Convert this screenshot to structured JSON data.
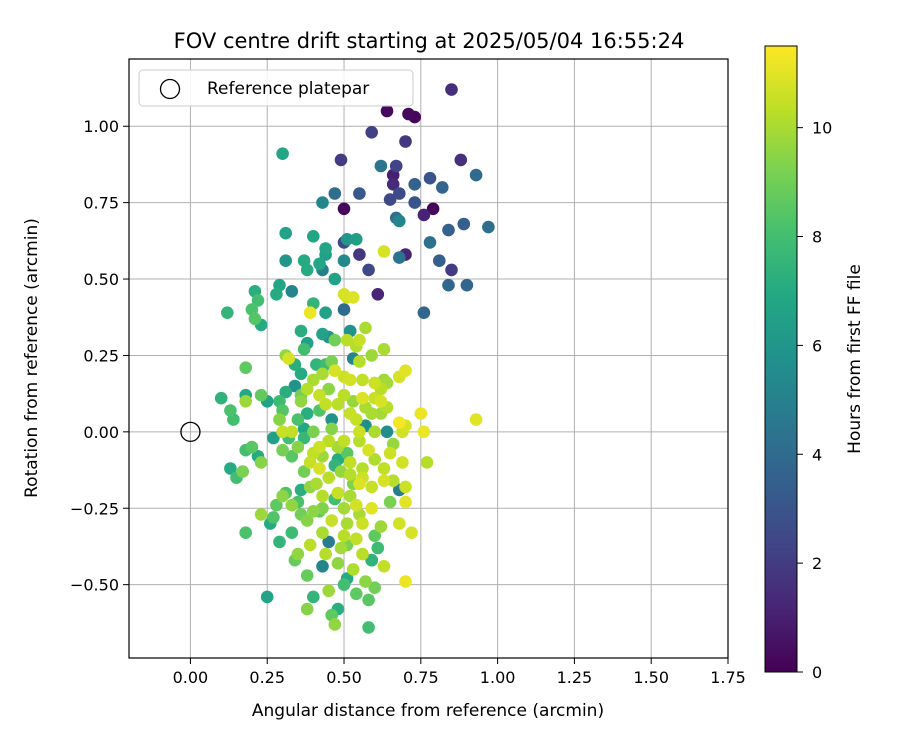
{
  "chart_data": {
    "type": "scatter",
    "title": "FOV centre drift starting at 2025/05/04 16:55:24",
    "xlabel": "Angular distance from reference (arcmin)",
    "ylabel": "Rotation from reference (arcmin)",
    "xlim": [
      -0.2,
      1.75
    ],
    "ylim": [
      -0.74,
      1.22
    ],
    "xticks": [
      "0.00",
      "0.25",
      "0.50",
      "0.75",
      "1.00",
      "1.25",
      "1.50",
      "1.75"
    ],
    "xtick_values": [
      0.0,
      0.25,
      0.5,
      0.75,
      1.0,
      1.25,
      1.5,
      1.75
    ],
    "yticks": [
      "−0.50",
      "−0.25",
      "0.00",
      "0.25",
      "0.50",
      "0.75",
      "1.00"
    ],
    "ytick_values": [
      -0.5,
      -0.25,
      0.0,
      0.25,
      0.5,
      0.75,
      1.0
    ],
    "grid": true,
    "legend": {
      "placement": "upper-left",
      "entries": [
        {
          "label": "Reference platepar",
          "marker": "open-circle",
          "color": "#000000"
        }
      ]
    },
    "reference_point": {
      "x": 0.0,
      "y": 0.0
    },
    "colorbar": {
      "label": "Hours from first FF file",
      "colormap": "viridis",
      "range": [
        0,
        11.5
      ],
      "ticks": [
        "0",
        "2",
        "4",
        "6",
        "8",
        "10"
      ],
      "tick_values": [
        0,
        2,
        4,
        6,
        8,
        10
      ]
    },
    "points": [
      [
        0.85,
        1.12,
        1.5
      ],
      [
        0.64,
        1.05,
        0.3
      ],
      [
        0.71,
        1.04,
        0.3
      ],
      [
        0.73,
        1.03,
        0.2
      ],
      [
        0.59,
        0.98,
        2.2
      ],
      [
        0.7,
        0.95,
        1.8
      ],
      [
        0.49,
        0.89,
        2.0
      ],
      [
        0.88,
        0.89,
        1.6
      ],
      [
        0.3,
        0.91,
        6.8
      ],
      [
        0.62,
        0.87,
        4.5
      ],
      [
        0.67,
        0.87,
        2.3
      ],
      [
        0.66,
        0.84,
        1.0
      ],
      [
        0.93,
        0.84,
        4.0
      ],
      [
        0.78,
        0.83,
        3.0
      ],
      [
        0.66,
        0.81,
        1.4
      ],
      [
        0.73,
        0.81,
        3.6
      ],
      [
        0.82,
        0.8,
        3.7
      ],
      [
        0.47,
        0.78,
        4.1
      ],
      [
        0.55,
        0.78,
        3.2
      ],
      [
        0.68,
        0.78,
        2.6
      ],
      [
        0.65,
        0.76,
        2.5
      ],
      [
        0.43,
        0.75,
        5.2
      ],
      [
        0.73,
        0.75,
        3.0
      ],
      [
        0.5,
        0.73,
        0.2
      ],
      [
        0.79,
        0.73,
        0.2
      ],
      [
        0.76,
        0.71,
        1.1
      ],
      [
        0.67,
        0.7,
        4.3
      ],
      [
        0.68,
        0.69,
        5.2
      ],
      [
        0.89,
        0.68,
        3.5
      ],
      [
        0.97,
        0.67,
        4.2
      ],
      [
        0.84,
        0.66,
        3.6
      ],
      [
        0.31,
        0.65,
        6.6
      ],
      [
        0.4,
        0.64,
        6.8
      ],
      [
        0.51,
        0.63,
        6.0
      ],
      [
        0.54,
        0.63,
        6.4
      ],
      [
        0.5,
        0.62,
        2.5
      ],
      [
        0.78,
        0.62,
        4.3
      ],
      [
        0.44,
        0.6,
        6.7
      ],
      [
        0.44,
        0.58,
        6.5
      ],
      [
        0.55,
        0.58,
        1.8
      ],
      [
        0.7,
        0.58,
        1.2
      ],
      [
        0.68,
        0.57,
        4.4
      ],
      [
        0.63,
        0.59,
        10.8
      ],
      [
        0.31,
        0.56,
        6.0
      ],
      [
        0.37,
        0.56,
        7.0
      ],
      [
        0.5,
        0.56,
        5.4
      ],
      [
        0.81,
        0.56,
        3.5
      ],
      [
        0.42,
        0.55,
        6.8
      ],
      [
        0.38,
        0.53,
        7.0
      ],
      [
        0.43,
        0.53,
        5.0
      ],
      [
        0.58,
        0.53,
        2.5
      ],
      [
        0.85,
        0.53,
        2.0
      ],
      [
        0.47,
        0.5,
        6.6
      ],
      [
        0.29,
        0.48,
        6.7
      ],
      [
        0.84,
        0.48,
        3.8
      ],
      [
        0.9,
        0.48,
        3.8
      ],
      [
        0.21,
        0.46,
        7.2
      ],
      [
        0.33,
        0.46,
        5.2
      ],
      [
        0.28,
        0.45,
        7.0
      ],
      [
        0.5,
        0.45,
        10.8
      ],
      [
        0.61,
        0.45,
        1.2
      ],
      [
        0.51,
        0.44,
        10.6
      ],
      [
        0.53,
        0.44,
        10.9
      ],
      [
        0.22,
        0.43,
        8.0
      ],
      [
        0.4,
        0.42,
        7.5
      ],
      [
        0.5,
        0.4,
        4.0
      ],
      [
        0.12,
        0.39,
        7.5
      ],
      [
        0.2,
        0.4,
        8.2
      ],
      [
        0.39,
        0.39,
        11.2
      ],
      [
        0.44,
        0.39,
        6.6
      ],
      [
        0.76,
        0.39,
        3.8
      ],
      [
        0.21,
        0.37,
        8.4
      ],
      [
        0.23,
        0.35,
        7.0
      ],
      [
        0.57,
        0.34,
        10.0
      ],
      [
        0.36,
        0.33,
        7.2
      ],
      [
        0.52,
        0.33,
        5.8
      ],
      [
        0.43,
        0.32,
        6.6
      ],
      [
        0.51,
        0.3,
        10.3
      ],
      [
        0.55,
        0.3,
        10.5
      ],
      [
        0.47,
        0.3,
        9.0
      ],
      [
        0.38,
        0.29,
        6.5
      ],
      [
        0.54,
        0.28,
        10.2
      ],
      [
        0.63,
        0.27,
        10.0
      ],
      [
        0.37,
        0.27,
        8.0
      ],
      [
        0.31,
        0.25,
        9.6
      ],
      [
        0.32,
        0.24,
        10.8
      ],
      [
        0.59,
        0.25,
        9.8
      ],
      [
        0.53,
        0.24,
        5.2
      ],
      [
        0.55,
        0.23,
        10.2
      ],
      [
        0.34,
        0.22,
        7.2
      ],
      [
        0.41,
        0.22,
        7.5
      ],
      [
        0.44,
        0.22,
        7.8
      ],
      [
        0.18,
        0.21,
        8.6
      ],
      [
        0.47,
        0.2,
        10.8
      ],
      [
        0.7,
        0.2,
        11.0
      ],
      [
        0.36,
        0.19,
        7.0
      ],
      [
        0.43,
        0.19,
        10.0
      ],
      [
        0.68,
        0.18,
        10.8
      ],
      [
        0.4,
        0.17,
        10.0
      ],
      [
        0.5,
        0.18,
        10.6
      ],
      [
        0.52,
        0.17,
        10.7
      ],
      [
        0.56,
        0.17,
        10.4
      ],
      [
        0.6,
        0.16,
        10.6
      ],
      [
        0.64,
        0.16,
        9.9
      ],
      [
        0.31,
        0.13,
        7.2
      ],
      [
        0.38,
        0.14,
        10.2
      ],
      [
        0.45,
        0.14,
        9.5
      ],
      [
        0.62,
        0.14,
        10.3
      ],
      [
        0.18,
        0.12,
        6.9
      ],
      [
        0.23,
        0.12,
        8.7
      ],
      [
        0.36,
        0.12,
        9.0
      ],
      [
        0.42,
        0.12,
        10.5
      ],
      [
        0.5,
        0.12,
        10.3
      ],
      [
        0.56,
        0.11,
        10.9
      ],
      [
        0.6,
        0.11,
        10.5
      ],
      [
        0.62,
        0.1,
        10.8
      ],
      [
        0.1,
        0.11,
        7.4
      ],
      [
        0.18,
        0.1,
        9.8
      ],
      [
        0.25,
        0.1,
        6.6
      ],
      [
        0.29,
        0.1,
        7.8
      ],
      [
        0.36,
        0.1,
        9.6
      ],
      [
        0.44,
        0.09,
        10.4
      ],
      [
        0.48,
        0.09,
        10.3
      ],
      [
        0.53,
        0.1,
        9.7
      ],
      [
        0.57,
        0.08,
        10.0
      ],
      [
        0.64,
        0.08,
        10.2
      ],
      [
        0.13,
        0.07,
        8.2
      ],
      [
        0.3,
        0.07,
        8.4
      ],
      [
        0.42,
        0.07,
        8.3
      ],
      [
        0.52,
        0.06,
        10.5
      ],
      [
        0.59,
        0.06,
        10.0
      ],
      [
        0.62,
        0.06,
        9.9
      ],
      [
        0.75,
        0.06,
        11.2
      ],
      [
        0.93,
        0.04,
        11.0
      ],
      [
        0.14,
        0.04,
        8.0
      ],
      [
        0.29,
        0.04,
        9.4
      ],
      [
        0.35,
        0.04,
        8.2
      ],
      [
        0.46,
        0.04,
        5.8
      ],
      [
        0.54,
        0.04,
        10.5
      ],
      [
        0.68,
        0.03,
        11.3
      ],
      [
        0.7,
        0.02,
        10.8
      ],
      [
        0.37,
        0.01,
        6.8
      ],
      [
        0.33,
        0.0,
        10.4
      ],
      [
        0.4,
        0.0,
        9.2
      ],
      [
        0.55,
        0.0,
        10.6
      ],
      [
        0.46,
        0.01,
        9.4
      ],
      [
        0.6,
        0.0,
        10.0
      ],
      [
        0.69,
        0.0,
        10.7
      ],
      [
        0.76,
        0.0,
        11.2
      ],
      [
        0.3,
        0.0,
        10.5
      ],
      [
        0.64,
        0.0,
        5.6
      ],
      [
        0.27,
        -0.02,
        6.5
      ],
      [
        0.32,
        -0.02,
        8.0
      ],
      [
        0.37,
        -0.02,
        7.6
      ],
      [
        0.45,
        -0.03,
        10.3
      ],
      [
        0.5,
        -0.03,
        10.4
      ],
      [
        0.55,
        -0.03,
        10.2
      ],
      [
        0.66,
        -0.04,
        9.7
      ],
      [
        0.2,
        -0.05,
        8.5
      ],
      [
        0.35,
        -0.05,
        9.4
      ],
      [
        0.42,
        -0.05,
        10.6
      ],
      [
        0.48,
        -0.05,
        9.9
      ],
      [
        0.58,
        -0.06,
        10.8
      ],
      [
        0.18,
        -0.06,
        8.0
      ],
      [
        0.3,
        -0.06,
        9.1
      ],
      [
        0.4,
        -0.07,
        10.4
      ],
      [
        0.51,
        -0.07,
        8.5
      ],
      [
        0.65,
        -0.07,
        10.6
      ],
      [
        0.22,
        -0.08,
        7.0
      ],
      [
        0.33,
        -0.08,
        8.5
      ],
      [
        0.43,
        -0.08,
        9.8
      ],
      [
        0.6,
        -0.09,
        10.1
      ],
      [
        0.69,
        -0.1,
        10.7
      ],
      [
        0.77,
        -0.1,
        10.2
      ],
      [
        0.23,
        -0.1,
        9.4
      ],
      [
        0.39,
        -0.1,
        10.5
      ],
      [
        0.52,
        -0.1,
        10.4
      ],
      [
        0.47,
        -0.11,
        7.5
      ],
      [
        0.42,
        -0.12,
        10.8
      ],
      [
        0.56,
        -0.12,
        10.2
      ],
      [
        0.63,
        -0.12,
        10.4
      ],
      [
        0.13,
        -0.12,
        7.0
      ],
      [
        0.49,
        -0.13,
        9.7
      ],
      [
        0.37,
        -0.13,
        9.0
      ],
      [
        0.17,
        -0.13,
        9.2
      ],
      [
        0.52,
        -0.14,
        10.2
      ],
      [
        0.15,
        -0.15,
        8.0
      ],
      [
        0.56,
        -0.15,
        10.6
      ],
      [
        0.63,
        -0.16,
        10.8
      ],
      [
        0.45,
        -0.15,
        10.3
      ],
      [
        0.66,
        -0.16,
        10.2
      ],
      [
        0.55,
        -0.17,
        10.9
      ],
      [
        0.41,
        -0.17,
        10.0
      ],
      [
        0.59,
        -0.18,
        10.5
      ],
      [
        0.68,
        -0.19,
        4.8
      ],
      [
        0.7,
        -0.18,
        10.6
      ],
      [
        0.39,
        -0.18,
        9.6
      ],
      [
        0.31,
        -0.2,
        8.3
      ],
      [
        0.48,
        -0.2,
        10.5
      ],
      [
        0.36,
        -0.19,
        7.2
      ],
      [
        0.52,
        -0.21,
        10.0
      ],
      [
        0.43,
        -0.21,
        10.2
      ],
      [
        0.3,
        -0.21,
        9.5
      ],
      [
        0.47,
        -0.22,
        8.0
      ],
      [
        0.35,
        -0.23,
        8.2
      ],
      [
        0.54,
        -0.24,
        10.7
      ],
      [
        0.33,
        -0.24,
        9.6
      ],
      [
        0.28,
        -0.24,
        8.6
      ],
      [
        0.59,
        -0.25,
        11.0
      ],
      [
        0.43,
        -0.25,
        9.3
      ],
      [
        0.5,
        -0.25,
        9.9
      ],
      [
        0.65,
        -0.23,
        9.2
      ],
      [
        0.7,
        -0.23,
        11.0
      ],
      [
        0.4,
        -0.26,
        9.5
      ],
      [
        0.36,
        -0.27,
        9.0
      ],
      [
        0.23,
        -0.27,
        9.8
      ],
      [
        0.55,
        -0.27,
        10.0
      ],
      [
        0.27,
        -0.28,
        8.3
      ],
      [
        0.46,
        -0.29,
        10.5
      ],
      [
        0.38,
        -0.29,
        9.4
      ],
      [
        0.26,
        -0.3,
        7.0
      ],
      [
        0.68,
        -0.3,
        10.7
      ],
      [
        0.51,
        -0.3,
        10.0
      ],
      [
        0.56,
        -0.3,
        10.6
      ],
      [
        0.62,
        -0.31,
        9.8
      ],
      [
        0.33,
        -0.33,
        7.8
      ],
      [
        0.18,
        -0.33,
        8.2
      ],
      [
        0.43,
        -0.33,
        10.0
      ],
      [
        0.72,
        -0.33,
        10.8
      ],
      [
        0.6,
        -0.34,
        8.6
      ],
      [
        0.5,
        -0.34,
        10.3
      ],
      [
        0.29,
        -0.36,
        7.5
      ],
      [
        0.54,
        -0.35,
        10.4
      ],
      [
        0.45,
        -0.36,
        4.8
      ],
      [
        0.39,
        -0.37,
        10.3
      ],
      [
        0.51,
        -0.37,
        9.2
      ],
      [
        0.49,
        -0.38,
        9.9
      ],
      [
        0.35,
        -0.4,
        9.6
      ],
      [
        0.44,
        -0.4,
        10.2
      ],
      [
        0.56,
        -0.4,
        10.3
      ],
      [
        0.34,
        -0.42,
        8.8
      ],
      [
        0.59,
        -0.42,
        7.4
      ],
      [
        0.48,
        -0.43,
        9.6
      ],
      [
        0.63,
        -0.44,
        10.4
      ],
      [
        0.43,
        -0.44,
        5.2
      ],
      [
        0.53,
        -0.45,
        10.1
      ],
      [
        0.38,
        -0.47,
        8.8
      ],
      [
        0.51,
        -0.48,
        7.0
      ],
      [
        0.57,
        -0.49,
        9.5
      ],
      [
        0.7,
        -0.49,
        11.2
      ],
      [
        0.5,
        -0.5,
        8.0
      ],
      [
        0.6,
        -0.51,
        9.0
      ],
      [
        0.45,
        -0.52,
        9.8
      ],
      [
        0.54,
        -0.53,
        8.6
      ],
      [
        0.25,
        -0.54,
        6.6
      ],
      [
        0.4,
        -0.54,
        7.5
      ],
      [
        0.58,
        -0.55,
        8.5
      ],
      [
        0.38,
        -0.58,
        9.4
      ],
      [
        0.48,
        -0.58,
        7.2
      ],
      [
        0.46,
        -0.6,
        8.6
      ],
      [
        0.47,
        -0.63,
        9.6
      ],
      [
        0.58,
        -0.64,
        8.0
      ],
      [
        0.59,
        -0.42,
        5.5
      ],
      [
        0.61,
        -0.38,
        7.8
      ],
      [
        0.42,
        -0.26,
        8.6
      ],
      [
        0.53,
        -0.17,
        9.3
      ],
      [
        0.48,
        -0.09,
        7.0
      ],
      [
        0.38,
        0.06,
        7.2
      ],
      [
        0.57,
        0.02,
        5.7
      ],
      [
        0.63,
        0.17,
        9.8
      ],
      [
        0.34,
        0.15,
        5.8
      ],
      [
        0.45,
        0.31,
        5.8
      ],
      [
        0.46,
        0.23,
        9.2
      ]
    ]
  }
}
